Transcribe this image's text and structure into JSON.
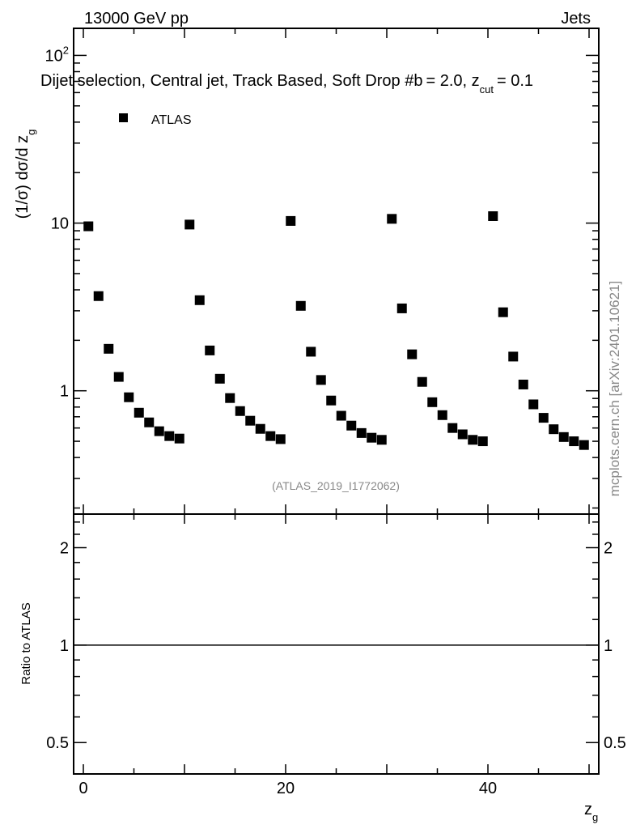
{
  "header": {
    "left": "13000 GeV pp",
    "right": "Jets"
  },
  "side_label": "mcplots.cern.ch [arXiv:2401.10621]",
  "analysis_id": "(ATLAS_2019_I1772062)",
  "chart_data": [
    {
      "type": "scatter",
      "title": "Dijet selection, Central jet, Track Based, Soft Drop #b",
      "title_suffix": "= 2.0, z",
      "title_sub": "cut",
      "title_end": "= 0.1",
      "ylabel": "(1/σ) dσ/d z",
      "ylabel_sub": "g",
      "yscale": "log",
      "ylim": [
        0.184,
        145
      ],
      "xlim": [
        -0.96,
        50.96
      ],
      "ytick_labels": [
        {
          "v": 1,
          "label": "1"
        },
        {
          "v": 10,
          "label": "10"
        },
        {
          "v": 100,
          "label": "10",
          "sup": "2"
        }
      ],
      "legend": [
        {
          "name": "ATLAS",
          "marker": "square",
          "color": "#000000"
        }
      ],
      "legend_position": "top-left",
      "series": [
        {
          "name": "ATLAS",
          "x": [
            0.5,
            1.5,
            2.5,
            3.5,
            4.5,
            5.5,
            6.5,
            7.5,
            8.5,
            9.5,
            10.5,
            11.5,
            12.5,
            13.5,
            14.5,
            15.5,
            16.5,
            17.5,
            18.5,
            19.5,
            20.5,
            21.5,
            22.5,
            23.5,
            24.5,
            25.5,
            26.5,
            27.5,
            28.5,
            29.5,
            30.5,
            31.5,
            32.5,
            33.5,
            34.5,
            35.5,
            36.5,
            37.5,
            38.5,
            39.5,
            40.5,
            41.5,
            42.5,
            43.5,
            44.5,
            45.5,
            46.5,
            47.5,
            48.5,
            49.5
          ],
          "y": [
            9.57,
            3.67,
            1.78,
            1.21,
            0.915,
            0.74,
            0.648,
            0.574,
            0.537,
            0.519,
            9.8,
            3.47,
            1.74,
            1.18,
            0.905,
            0.757,
            0.663,
            0.593,
            0.537,
            0.515,
            10.3,
            3.21,
            1.71,
            1.16,
            0.875,
            0.71,
            0.62,
            0.56,
            0.525,
            0.51,
            10.6,
            3.1,
            1.65,
            1.13,
            0.855,
            0.716,
            0.6,
            0.55,
            0.51,
            0.5,
            11.0,
            2.94,
            1.6,
            1.09,
            0.83,
            0.69,
            0.59,
            0.53,
            0.5,
            0.475
          ]
        }
      ]
    },
    {
      "type": "line",
      "ylabel": "Ratio to ATLAS",
      "xlabel": "z",
      "xlabel_sub": "g",
      "yscale": "log",
      "ylim": [
        0.4,
        2.54
      ],
      "xlim": [
        -0.96,
        50.96
      ],
      "ytick_labels": [
        {
          "v": 0.5,
          "label": "0.5"
        },
        {
          "v": 1,
          "label": "1"
        },
        {
          "v": 2,
          "label": "2"
        }
      ],
      "xtick_labels": [
        {
          "v": 0,
          "label": "0"
        },
        {
          "v": 20,
          "label": "20"
        },
        {
          "v": 40,
          "label": "40"
        }
      ],
      "reference_line": 1
    }
  ]
}
